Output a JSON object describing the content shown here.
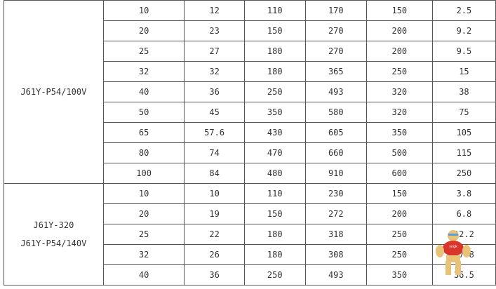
{
  "groups": [
    {
      "label_lines": [
        "J61Y-P54/100V"
      ],
      "rows": [
        [
          "10",
          "12",
          "110",
          "170",
          "150",
          "2.5"
        ],
        [
          "20",
          "23",
          "150",
          "270",
          "200",
          "9.2"
        ],
        [
          "25",
          "27",
          "180",
          "270",
          "200",
          "9.5"
        ],
        [
          "32",
          "32",
          "180",
          "365",
          "250",
          "15"
        ],
        [
          "40",
          "36",
          "250",
          "493",
          "320",
          "38"
        ],
        [
          "50",
          "45",
          "350",
          "580",
          "320",
          "75"
        ],
        [
          "65",
          "57.6",
          "430",
          "605",
          "350",
          "105"
        ],
        [
          "80",
          "74",
          "470",
          "660",
          "500",
          "115"
        ],
        [
          "100",
          "84",
          "480",
          "910",
          "600",
          "250"
        ]
      ]
    },
    {
      "label_lines": [
        "J61Y-320",
        "J61Y-P54/140V"
      ],
      "rows": [
        [
          "10",
          "10",
          "110",
          "230",
          "150",
          "3.8"
        ],
        [
          "20",
          "19",
          "150",
          "272",
          "200",
          "6.8"
        ],
        [
          "25",
          "22",
          "180",
          "318",
          "250",
          "12.2"
        ],
        [
          "32",
          "26",
          "180",
          "308",
          "250",
          "17.8"
        ],
        [
          "40",
          "36",
          "250",
          "493",
          "350",
          "36.5"
        ]
      ]
    }
  ],
  "watermark": {
    "text": "yngk",
    "icon": "bear-mascot-icon"
  }
}
